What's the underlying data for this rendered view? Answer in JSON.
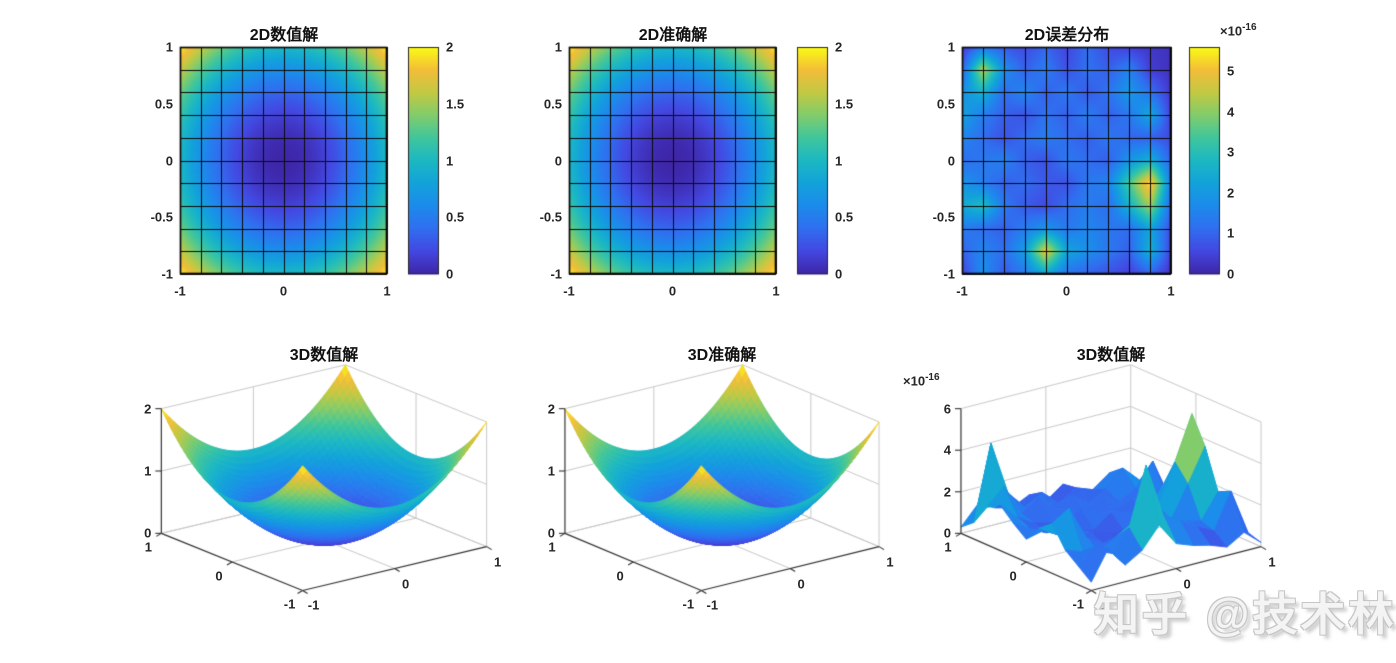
{
  "figure": {
    "watermark": "知乎 @技术林",
    "background": "#ffffff",
    "axis_color": "#262626",
    "grid3d_color": "#c9c9c9",
    "mesh_line_color": "#0a0a0a",
    "colormap_parula": [
      [
        0.0,
        "#3E26A8"
      ],
      [
        0.1,
        "#4348E2"
      ],
      [
        0.2,
        "#306FF0"
      ],
      [
        0.3,
        "#1C8BEB"
      ],
      [
        0.4,
        "#12A3DA"
      ],
      [
        0.5,
        "#1CB8C3"
      ],
      [
        0.6,
        "#40C69C"
      ],
      [
        0.7,
        "#81CC6C"
      ],
      [
        0.8,
        "#C2C943"
      ],
      [
        0.9,
        "#F3BD39"
      ],
      [
        1.0,
        "#F9FB15"
      ]
    ]
  },
  "error_grid_1e16": [
    [
      0.3,
      1.2,
      0.8,
      0.6,
      1.0,
      0.5,
      1.1,
      0.6,
      0.4,
      0.3,
      0.2
    ],
    [
      0.8,
      4.4,
      1.8,
      0.9,
      1.4,
      0.7,
      1.2,
      0.9,
      1.5,
      0.4,
      0.2
    ],
    [
      1.8,
      2.6,
      1.1,
      1.6,
      0.9,
      1.3,
      0.8,
      1.2,
      2.0,
      1.2,
      0.3
    ],
    [
      2.2,
      1.4,
      0.9,
      0.7,
      1.2,
      0.9,
      1.4,
      0.9,
      1.3,
      2.4,
      0.4
    ],
    [
      1.6,
      1.1,
      0.7,
      1.1,
      1.4,
      1.1,
      0.9,
      1.3,
      1.0,
      0.9,
      0.6
    ],
    [
      1.1,
      1.3,
      1.5,
      0.9,
      0.7,
      1.3,
      1.1,
      0.9,
      1.9,
      2.6,
      0.9
    ],
    [
      1.9,
      1.4,
      0.9,
      1.1,
      0.8,
      0.7,
      1.3,
      1.5,
      3.4,
      5.5,
      1.3
    ],
    [
      2.4,
      2.9,
      1.3,
      0.8,
      0.6,
      1.1,
      1.4,
      1.1,
      2.6,
      4.2,
      0.9
    ],
    [
      1.4,
      1.1,
      0.9,
      1.4,
      1.9,
      1.3,
      1.6,
      1.3,
      1.1,
      2.3,
      0.6
    ],
    [
      0.9,
      1.6,
      1.1,
      2.1,
      4.9,
      2.3,
      1.8,
      1.3,
      0.9,
      2.6,
      0.4
    ],
    [
      0.4,
      1.8,
      0.8,
      1.3,
      2.3,
      1.2,
      0.9,
      0.7,
      0.4,
      0.9,
      0.2
    ]
  ],
  "chart_data": [
    {
      "type": "heatmap",
      "title": "2D数值解",
      "x_range": [
        -1,
        1
      ],
      "y_range": [
        -1,
        1
      ],
      "z_expression": "x^2+y^2",
      "z_range": [
        0,
        2
      ],
      "mesh_step": 0.2,
      "x_tick_vals": [
        -1,
        0,
        1
      ],
      "x_tick_labels": [
        "-1",
        "0",
        "1"
      ],
      "y_tick_vals": [
        1,
        0.5,
        0,
        -0.5,
        -1
      ],
      "y_tick_labels": [
        "1",
        "0.5",
        "0",
        "-0.5",
        "-1"
      ],
      "colorbar": {
        "min": 0,
        "max": 2,
        "tick_vals": [
          0,
          0.5,
          1,
          1.5,
          2
        ],
        "tick_labels": [
          "0",
          "0.5",
          "1",
          "1.5",
          "2"
        ]
      }
    },
    {
      "type": "heatmap",
      "title": "2D准确解",
      "x_range": [
        -1,
        1
      ],
      "y_range": [
        -1,
        1
      ],
      "z_expression": "x^2+y^2",
      "z_range": [
        0,
        2
      ],
      "mesh_step": 0.2,
      "x_tick_vals": [
        -1,
        0,
        1
      ],
      "x_tick_labels": [
        "-1",
        "0",
        "1"
      ],
      "y_tick_vals": [
        1,
        0.5,
        0,
        -0.5,
        -1
      ],
      "y_tick_labels": [
        "1",
        "0.5",
        "0",
        "-0.5",
        "-1"
      ],
      "colorbar": {
        "min": 0,
        "max": 2,
        "tick_vals": [
          0,
          0.5,
          1,
          1.5,
          2
        ],
        "tick_labels": [
          "0",
          "0.5",
          "1",
          "1.5",
          "2"
        ]
      }
    },
    {
      "type": "heatmap",
      "title": "2D误差分布",
      "x_range": [
        -1,
        1
      ],
      "y_range": [
        -1,
        1
      ],
      "z_source": "error_grid_1e16",
      "z_unit": "1e-16",
      "z_range": [
        0,
        5.6
      ],
      "mesh_step": 0.2,
      "x_tick_vals": [
        -1,
        0,
        1
      ],
      "x_tick_labels": [
        "-1",
        "0",
        "1"
      ],
      "y_tick_vals": [
        1,
        0.5,
        0,
        -0.5,
        -1
      ],
      "y_tick_labels": [
        "1",
        "0.5",
        "0",
        "-0.5",
        "-1"
      ],
      "colorbar": {
        "min": 0,
        "max": 5.6,
        "tick_vals": [
          0,
          1,
          2,
          3,
          4,
          5
        ],
        "tick_labels": [
          "0",
          "1",
          "2",
          "3",
          "4",
          "5"
        ],
        "exponent": {
          "mant": "×10",
          "sup": "-16"
        }
      }
    },
    {
      "type": "surface3d",
      "title": "3D数值解",
      "x_range": [
        -1,
        1
      ],
      "y_range": [
        -1,
        1
      ],
      "z_expression": "x^2+y^2",
      "z_range": [
        0,
        2
      ],
      "z_axis_max": 2,
      "z_tick_vals": [
        0,
        1,
        2
      ],
      "z_tick_labels": [
        "0",
        "1",
        "2"
      ],
      "xy_tick_vals": [
        -1,
        0,
        1
      ],
      "xy_tick_labels": [
        "-1",
        "0",
        "1"
      ],
      "view": {
        "azimuth": -37.5,
        "elevation": 30
      }
    },
    {
      "type": "surface3d",
      "title": "3D准确解",
      "x_range": [
        -1,
        1
      ],
      "y_range": [
        -1,
        1
      ],
      "z_expression": "x^2+y^2",
      "z_range": [
        0,
        2
      ],
      "z_axis_max": 2,
      "z_tick_vals": [
        0,
        1,
        2
      ],
      "z_tick_labels": [
        "0",
        "1",
        "2"
      ],
      "xy_tick_vals": [
        -1,
        0,
        1
      ],
      "xy_tick_labels": [
        "-1",
        "0",
        "1"
      ],
      "view": {
        "azimuth": -37.5,
        "elevation": 30
      }
    },
    {
      "type": "surface3d",
      "title": "3D数值解",
      "x_range": [
        -1,
        1
      ],
      "y_range": [
        -1,
        1
      ],
      "z_source": "error_grid_1e16",
      "z_unit": "1e-16",
      "z_range": [
        0,
        5.6
      ],
      "z_axis_max": 6,
      "z_tick_vals": [
        0,
        2,
        4,
        6
      ],
      "z_tick_labels": [
        "0",
        "2",
        "4",
        "6"
      ],
      "xy_tick_vals": [
        -1,
        0,
        1
      ],
      "xy_tick_labels": [
        "-1",
        "0",
        "1"
      ],
      "exponent": {
        "mant": "×10",
        "sup": "-16"
      },
      "view": {
        "azimuth": -37.5,
        "elevation": 30
      }
    }
  ]
}
